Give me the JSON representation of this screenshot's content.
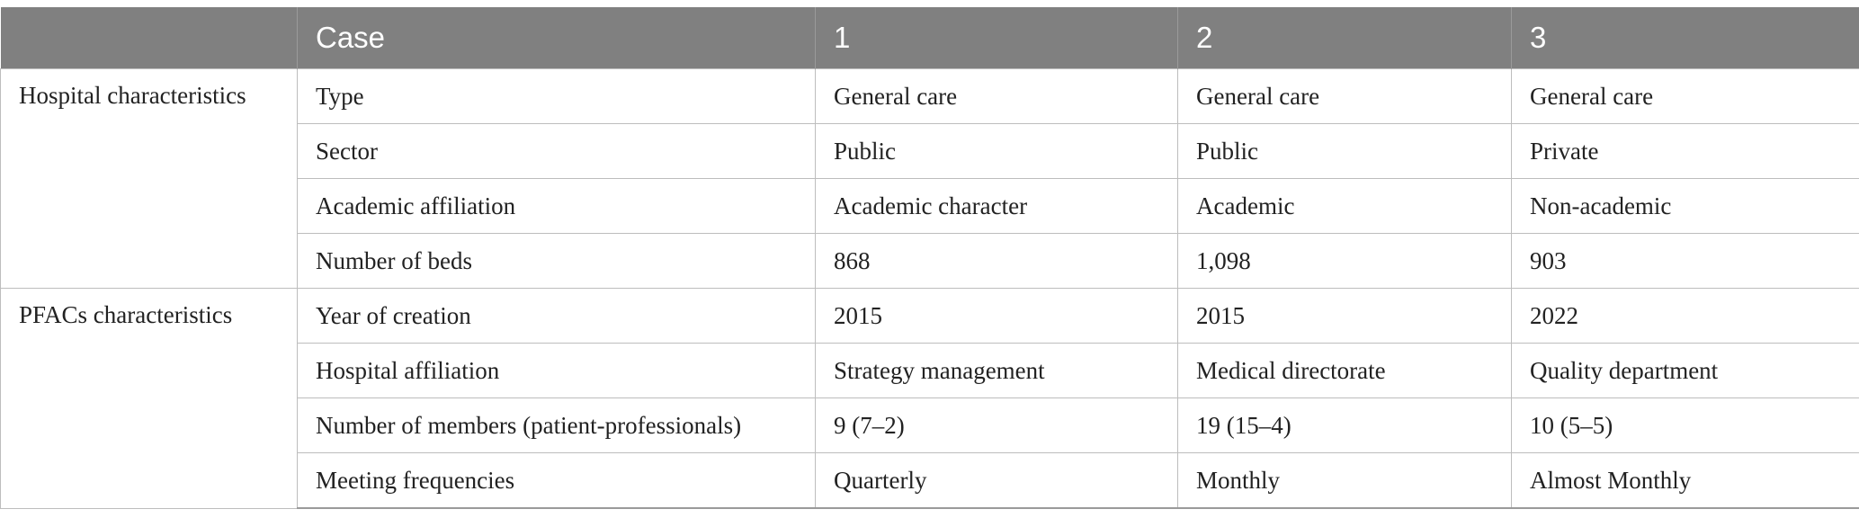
{
  "header": {
    "blank": "",
    "case_label": "Case",
    "cases": [
      "1",
      "2",
      "3"
    ]
  },
  "groups": [
    {
      "label": "Hospital characteristics",
      "rows": [
        {
          "label": "Type",
          "values": [
            "General care",
            "General care",
            "General care"
          ]
        },
        {
          "label": "Sector",
          "values": [
            "Public",
            "Public",
            "Private"
          ]
        },
        {
          "label": "Academic affiliation",
          "values": [
            "Academic character",
            "Academic",
            "Non-academic"
          ]
        },
        {
          "label": "Number of beds",
          "values": [
            "868",
            "1,098",
            "903"
          ]
        }
      ]
    },
    {
      "label": "PFACs characteristics",
      "rows": [
        {
          "label": "Year of creation",
          "values": [
            "2015",
            "2015",
            "2022"
          ]
        },
        {
          "label": "Hospital affiliation",
          "values": [
            "Strategy management",
            "Medical directorate",
            "Quality department"
          ]
        },
        {
          "label": "Number of members (patient-professionals)",
          "values": [
            "9 (7–2)",
            "19 (15–4)",
            "10 (5–5)"
          ]
        },
        {
          "label": "Meeting frequencies",
          "values": [
            "Quarterly",
            "Monthly",
            "Almost Monthly"
          ]
        }
      ]
    }
  ]
}
